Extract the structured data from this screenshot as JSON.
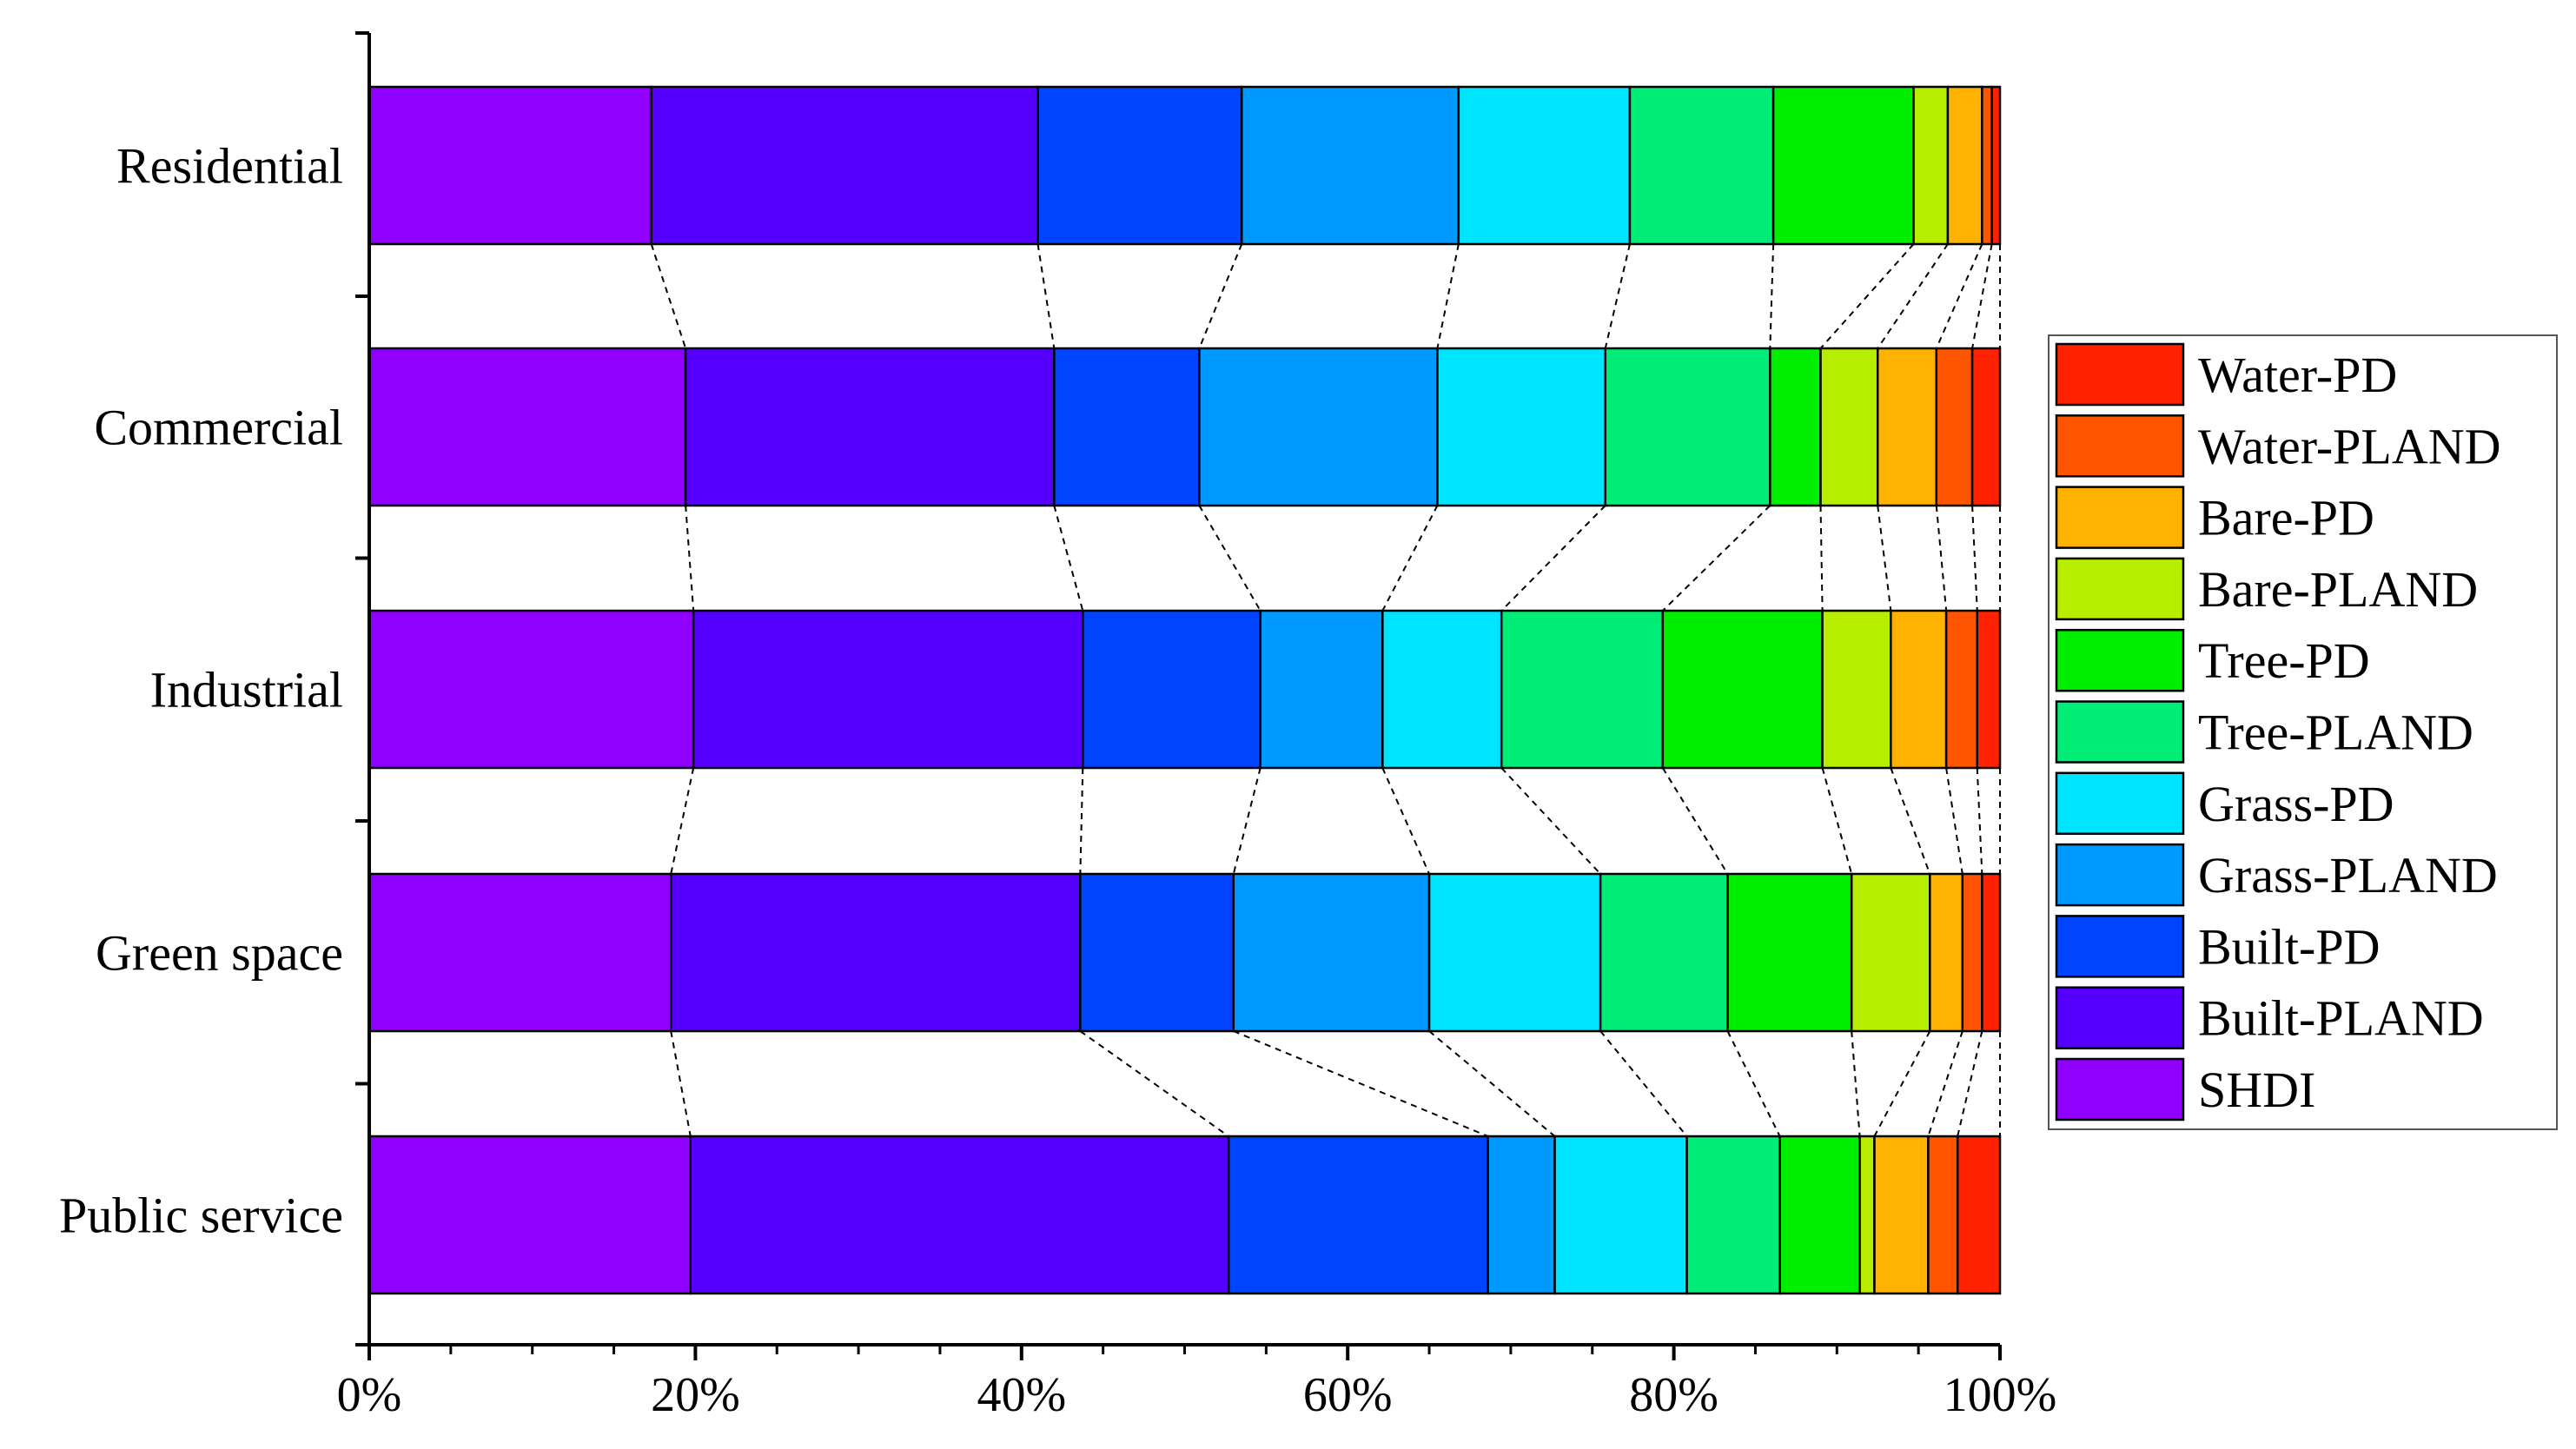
{
  "chart_data": {
    "type": "bar",
    "orientation": "horizontal",
    "stacked": "percent",
    "title": "",
    "xlabel": "",
    "ylabel": "",
    "xlim": [
      0,
      100
    ],
    "x_ticks": [
      "0%",
      "20%",
      "40%",
      "60%",
      "80%",
      "100%"
    ],
    "categories": [
      "Residential",
      "Commercial",
      "Industrial",
      "Green space",
      "Public service"
    ],
    "series": [
      {
        "name": "SHDI",
        "color": "#8f00ff",
        "values": [
          17.3,
          19.4,
          19.9,
          18.5,
          19.7
        ]
      },
      {
        "name": "Built-PLAND",
        "color": "#5500ff",
        "values": [
          23.7,
          22.6,
          23.9,
          25.1,
          33.0
        ]
      },
      {
        "name": "Built-PD",
        "color": "#0044ff",
        "values": [
          12.5,
          8.9,
          10.9,
          9.4,
          15.9
        ]
      },
      {
        "name": "Grass-PLAND",
        "color": "#0099ff",
        "values": [
          13.3,
          14.6,
          7.5,
          12.0,
          4.1
        ]
      },
      {
        "name": "Grass-PD",
        "color": "#00e5ff",
        "values": [
          10.5,
          10.3,
          7.3,
          10.5,
          8.1
        ]
      },
      {
        "name": "Tree-PLAND",
        "color": "#00ee77",
        "values": [
          8.8,
          10.1,
          9.9,
          7.8,
          5.7
        ]
      },
      {
        "name": "Tree-PD",
        "color": "#00ee00",
        "values": [
          8.6,
          3.1,
          9.8,
          7.6,
          4.9
        ]
      },
      {
        "name": "Bare-PLAND",
        "color": "#b7ee00",
        "values": [
          2.1,
          3.5,
          4.2,
          4.8,
          0.9
        ]
      },
      {
        "name": "Bare-PD",
        "color": "#ffb300",
        "values": [
          2.1,
          3.6,
          3.4,
          2.0,
          3.3
        ]
      },
      {
        "name": "Water-PLAND",
        "color": "#ff5500",
        "values": [
          0.6,
          2.2,
          1.9,
          1.2,
          1.8
        ]
      },
      {
        "name": "Water-PD",
        "color": "#ff2200",
        "values": [
          0.5,
          1.7,
          1.4,
          1.1,
          2.6
        ]
      }
    ],
    "legend_position": "right",
    "legend_order": [
      "Water-PD",
      "Water-PLAND",
      "Bare-PD",
      "Bare-PLAND",
      "Tree-PD",
      "Tree-PLAND",
      "Grass-PD",
      "Grass-PLAND",
      "Built-PD",
      "Built-PLAND",
      "SHDI"
    ],
    "connector_lines": "dashed",
    "grid": false
  }
}
